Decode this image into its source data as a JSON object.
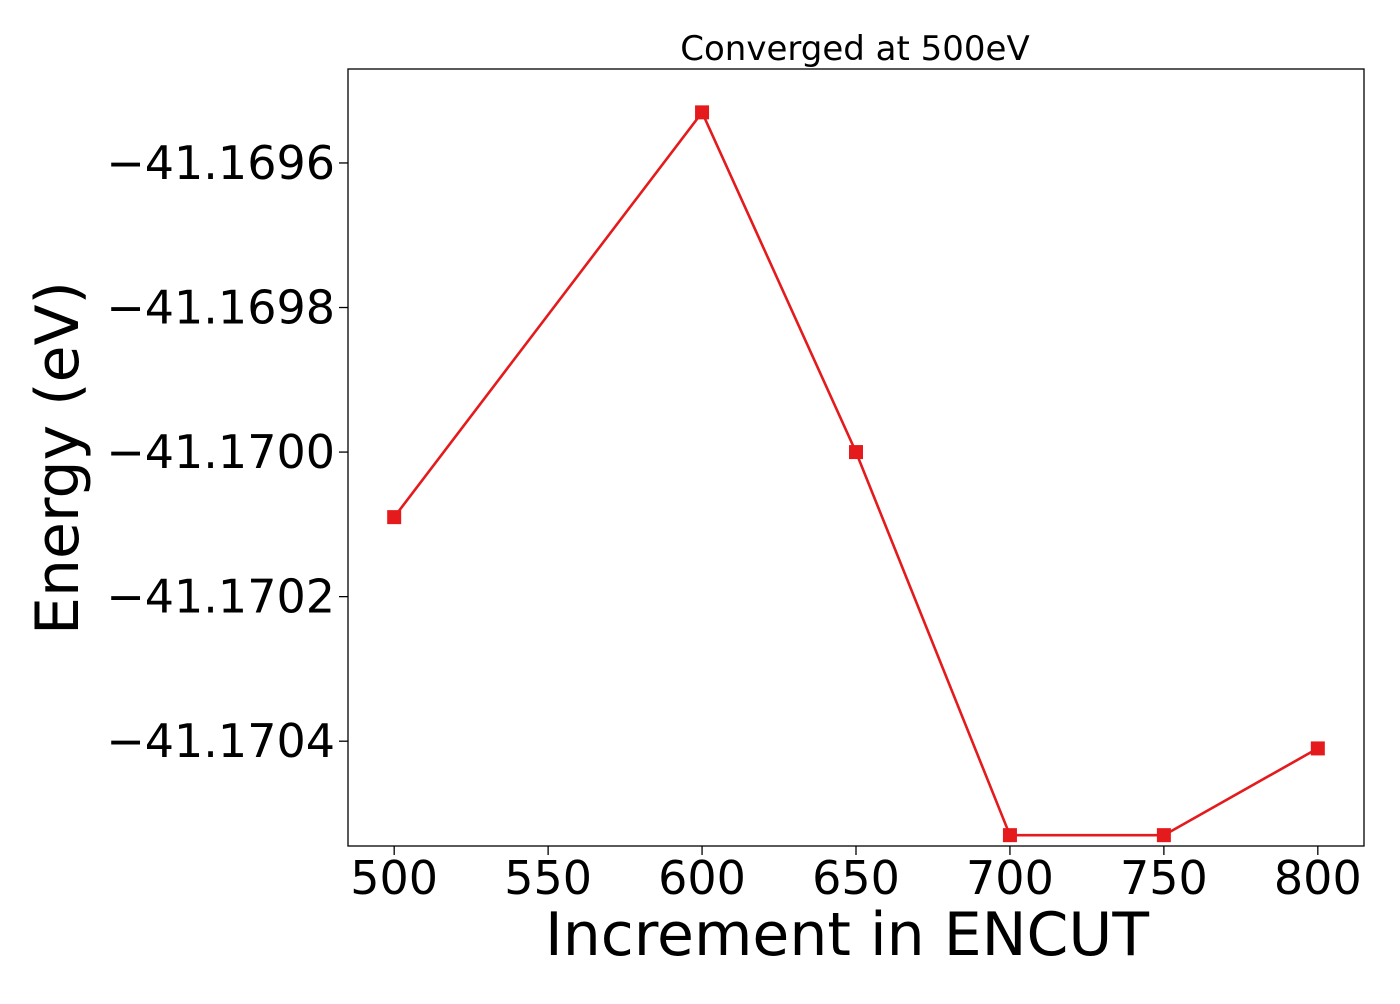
{
  "chart_data": {
    "type": "line",
    "title": "Converged at 500eV",
    "xlabel": "Increment in ENCUT",
    "ylabel": "Energy (eV)",
    "x": [
      500,
      600,
      650,
      700,
      750,
      800
    ],
    "series": [
      {
        "values": [
          -41.17009,
          -41.16953,
          -41.17,
          -41.17053,
          -41.17053,
          -41.17041
        ]
      }
    ],
    "xlim": [
      485,
      815
    ],
    "ylim": [
      -41.170545,
      -41.16947
    ],
    "xticks": [
      500,
      550,
      600,
      650,
      700,
      750,
      800
    ],
    "xtick_labels": [
      "500",
      "550",
      "600",
      "650",
      "700",
      "750",
      "800"
    ],
    "yticks": [
      -41.1696,
      -41.1698,
      -41.17,
      -41.1702,
      -41.1704
    ],
    "ytick_labels": [
      "−41.1696",
      "−41.1698",
      "−41.1700",
      "−41.1702",
      "−41.1704"
    ],
    "grid": false,
    "legend": false,
    "marker": "square",
    "color": "#e41a1c"
  }
}
